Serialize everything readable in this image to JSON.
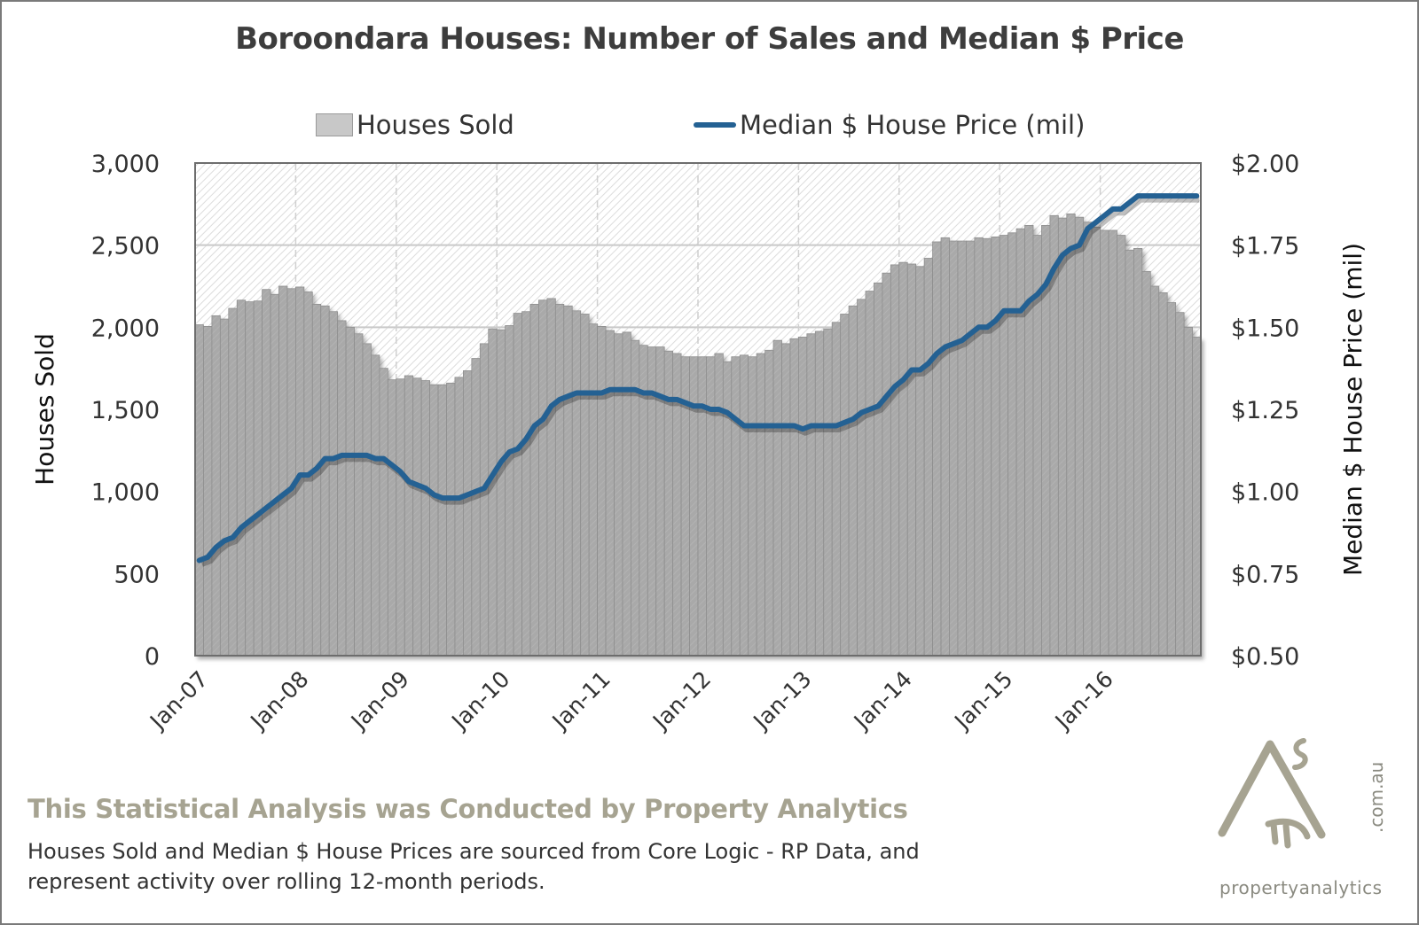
{
  "chart_data": {
    "type": "bar",
    "title": "Boroondara Houses: Number of Sales and Median $ Price",
    "legend": {
      "placement": "top",
      "entries": [
        {
          "label": "Houses Sold",
          "kind": "bar",
          "color": "#c8c8c8"
        },
        {
          "label": "Median $ House Price (mil)",
          "kind": "line",
          "color": "#246193"
        }
      ]
    },
    "xlabel": "",
    "ylabel": "Houses Sold",
    "y2label": "Median $ House Price (mil)",
    "ylim": [
      0,
      3000
    ],
    "y2lim": [
      0.5,
      2.0
    ],
    "yticks": [
      "0",
      "500",
      "1,000",
      "1,500",
      "2,000",
      "2,500",
      "3,000"
    ],
    "y2ticks": [
      "$0.50",
      "$0.75",
      "$1.00",
      "$1.25",
      "$1.50",
      "$1.75",
      "$2.00"
    ],
    "xticks": [
      "Jan-07",
      "Jan-08",
      "Jan-09",
      "Jan-10",
      "Jan-11",
      "Jan-12",
      "Jan-13",
      "Jan-14",
      "Jan-15",
      "Jan-16"
    ],
    "x_start": "Jan-07",
    "x_frequency": "monthly",
    "grid": true,
    "series": [
      {
        "name": "Houses Sold",
        "type": "bar",
        "axis": "left",
        "values": [
          2015,
          2005,
          2070,
          2050,
          2115,
          2165,
          2155,
          2160,
          2230,
          2200,
          2250,
          2235,
          2245,
          2215,
          2140,
          2130,
          2095,
          2040,
          2000,
          1960,
          1900,
          1830,
          1750,
          1680,
          1685,
          1705,
          1690,
          1675,
          1650,
          1650,
          1660,
          1695,
          1735,
          1810,
          1900,
          1990,
          1985,
          2010,
          2085,
          2095,
          2140,
          2165,
          2175,
          2140,
          2130,
          2100,
          2080,
          2020,
          2005,
          1980,
          1960,
          1970,
          1920,
          1890,
          1880,
          1880,
          1855,
          1840,
          1820,
          1820,
          1820,
          1820,
          1840,
          1790,
          1820,
          1830,
          1820,
          1840,
          1860,
          1920,
          1900,
          1930,
          1940,
          1960,
          1975,
          1990,
          2030,
          2080,
          2130,
          2170,
          2220,
          2270,
          2330,
          2380,
          2395,
          2385,
          2370,
          2420,
          2520,
          2545,
          2525,
          2525,
          2525,
          2545,
          2540,
          2550,
          2560,
          2575,
          2600,
          2620,
          2560,
          2620,
          2680,
          2665,
          2690,
          2670,
          2640,
          2610,
          2590,
          2590,
          2560,
          2470,
          2480,
          2340,
          2250,
          2210,
          2150,
          2090,
          2000,
          1940
        ]
      },
      {
        "name": "Median $ House Price (mil)",
        "type": "line",
        "axis": "right",
        "values": [
          0.79,
          0.8,
          0.83,
          0.85,
          0.86,
          0.89,
          0.91,
          0.93,
          0.95,
          0.97,
          0.99,
          1.01,
          1.05,
          1.05,
          1.07,
          1.1,
          1.1,
          1.11,
          1.11,
          1.11,
          1.11,
          1.1,
          1.1,
          1.08,
          1.06,
          1.03,
          1.02,
          1.01,
          0.99,
          0.98,
          0.98,
          0.98,
          0.99,
          1.0,
          1.01,
          1.05,
          1.09,
          1.12,
          1.13,
          1.16,
          1.2,
          1.22,
          1.26,
          1.28,
          1.29,
          1.3,
          1.3,
          1.3,
          1.3,
          1.31,
          1.31,
          1.31,
          1.31,
          1.3,
          1.3,
          1.29,
          1.28,
          1.28,
          1.27,
          1.26,
          1.26,
          1.25,
          1.25,
          1.24,
          1.22,
          1.2,
          1.2,
          1.2,
          1.2,
          1.2,
          1.2,
          1.2,
          1.19,
          1.2,
          1.2,
          1.2,
          1.2,
          1.21,
          1.22,
          1.24,
          1.25,
          1.26,
          1.29,
          1.32,
          1.34,
          1.37,
          1.37,
          1.39,
          1.42,
          1.44,
          1.45,
          1.46,
          1.48,
          1.5,
          1.5,
          1.52,
          1.55,
          1.55,
          1.55,
          1.58,
          1.6,
          1.63,
          1.68,
          1.72,
          1.74,
          1.75,
          1.8,
          1.82,
          1.84,
          1.86,
          1.86,
          1.88,
          1.9,
          1.9,
          1.9,
          1.9,
          1.9,
          1.9,
          1.9,
          1.9
        ]
      }
    ]
  },
  "footer": {
    "heading": "This Statistical Analysis was Conducted by Property Analytics",
    "body": "Houses Sold and Median $ House Prices are sourced from Core Logic - RP Data, and represent activity over rolling 12-month periods."
  },
  "logo": {
    "name": "propertyanalytics",
    "domain": ".com.au"
  },
  "colors": {
    "bar_fill": "#a9a9a9",
    "line": "#246193",
    "footer_heading": "#a6a391"
  }
}
